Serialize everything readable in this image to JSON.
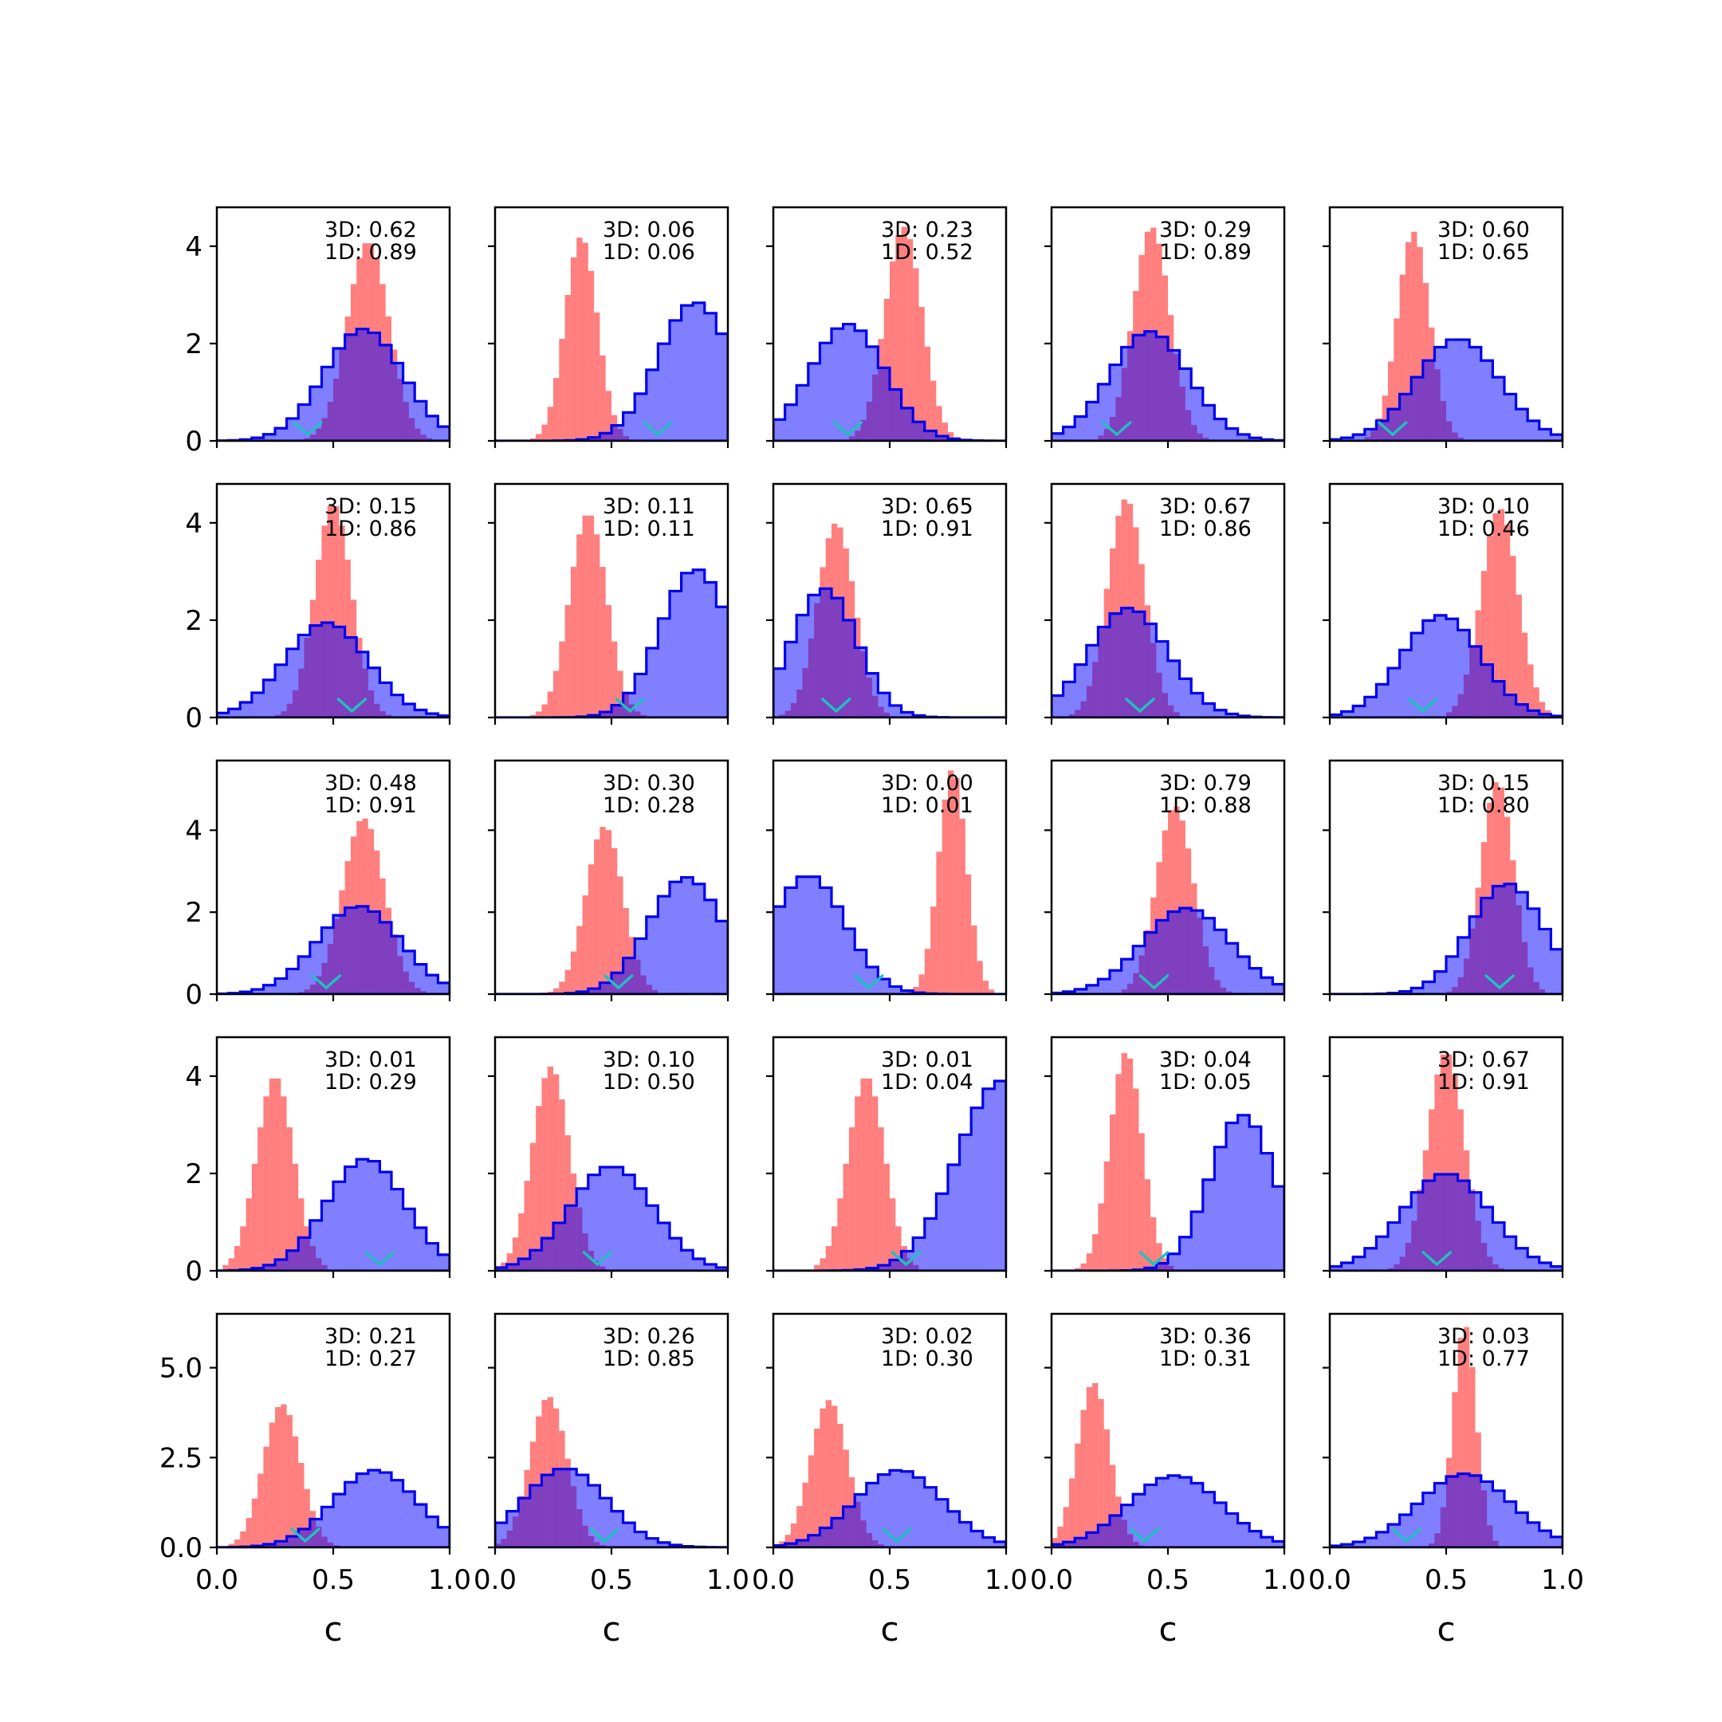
{
  "figure": {
    "layout": "5x5 grid of histograms",
    "background": "#ffffff"
  },
  "colors": {
    "histogram_1": "#ff0000",
    "histogram_2_fill": "#0000ff",
    "histogram_2_edge": "#0000ee",
    "marker": "#20c0c0",
    "frame": "#000000"
  },
  "chart_data": {
    "type": "histogram-grid",
    "rows": 5,
    "cols": 5,
    "sharex": true,
    "xlim": [
      0,
      1
    ],
    "xticks": [
      0.0,
      0.5,
      1.0
    ],
    "xtick_labels": [
      "0.0",
      "0.5",
      "1.0"
    ],
    "xlabel": "c",
    "row_axes": [
      {
        "ylim": [
          0,
          4.8
        ],
        "yticks": [
          0,
          2,
          4
        ],
        "ytick_labels": [
          "0",
          "2",
          "4"
        ]
      },
      {
        "ylim": [
          0,
          4.8
        ],
        "yticks": [
          0,
          2,
          4
        ],
        "ytick_labels": [
          "0",
          "2",
          "4"
        ]
      },
      {
        "ylim": [
          0,
          5.7
        ],
        "yticks": [
          0,
          2,
          4
        ],
        "ytick_labels": [
          "0",
          "2",
          "4"
        ]
      },
      {
        "ylim": [
          0,
          4.8
        ],
        "yticks": [
          0,
          2,
          4
        ],
        "ytick_labels": [
          "0",
          "2",
          "4"
        ]
      },
      {
        "ylim": [
          0,
          6.5
        ],
        "yticks": [
          0,
          2.5,
          5.0
        ],
        "ytick_labels": [
          "0.0",
          "2.5",
          "5.0"
        ]
      }
    ],
    "hist_1": {
      "style": "filled",
      "color": "#ff0000",
      "alpha": 0.5
    },
    "hist_2": {
      "style": "stepfilled",
      "color": "#0000ff",
      "alpha": 0.5,
      "edge": "#0000ee"
    },
    "panels": [
      {
        "label_3d": "3D: 0.62",
        "label_1d": "1D: 0.89",
        "red": {
          "mu": 0.65,
          "sd": 0.09,
          "peak": 4.1
        },
        "blue": {
          "mu": 0.63,
          "sd": 0.17,
          "peak": 2.3
        },
        "marker_x": 0.39
      },
      {
        "label_3d": "3D: 0.06",
        "label_1d": "1D: 0.06",
        "red": {
          "mu": 0.37,
          "sd": 0.07,
          "peak": 4.2
        },
        "blue": {
          "mu": 0.86,
          "sd": 0.16,
          "peak": 2.85
        },
        "marker_x": 0.7
      },
      {
        "label_3d": "3D: 0.23",
        "label_1d": "1D: 0.52",
        "red": {
          "mu": 0.56,
          "sd": 0.08,
          "peak": 4.4
        },
        "blue": {
          "mu": 0.32,
          "sd": 0.16,
          "peak": 2.4
        },
        "marker_x": 0.32
      },
      {
        "label_3d": "3D: 0.29",
        "label_1d": "1D: 0.89",
        "red": {
          "mu": 0.43,
          "sd": 0.08,
          "peak": 4.4
        },
        "blue": {
          "mu": 0.42,
          "sd": 0.17,
          "peak": 2.25
        },
        "marker_x": 0.28
      },
      {
        "label_3d": "3D: 0.60",
        "label_1d": "1D: 0.65",
        "red": {
          "mu": 0.36,
          "sd": 0.07,
          "peak": 4.3
        },
        "blue": {
          "mu": 0.55,
          "sd": 0.18,
          "peak": 2.1
        },
        "marker_x": 0.27
      },
      {
        "label_3d": "3D: 0.15",
        "label_1d": "1D: 0.86",
        "red": {
          "mu": 0.5,
          "sd": 0.08,
          "peak": 4.4
        },
        "blue": {
          "mu": 0.47,
          "sd": 0.18,
          "peak": 1.95
        },
        "marker_x": 0.58
      },
      {
        "label_3d": "3D: 0.11",
        "label_1d": "1D: 0.11",
        "red": {
          "mu": 0.4,
          "sd": 0.08,
          "peak": 4.2
        },
        "blue": {
          "mu": 0.86,
          "sd": 0.15,
          "peak": 3.05
        },
        "marker_x": 0.58
      },
      {
        "label_3d": "3D: 0.65",
        "label_1d": "1D: 0.91",
        "red": {
          "mu": 0.27,
          "sd": 0.08,
          "peak": 4.0
        },
        "blue": {
          "mu": 0.22,
          "sd": 0.14,
          "peak": 2.65
        },
        "marker_x": 0.27
      },
      {
        "label_3d": "3D: 0.67",
        "label_1d": "1D: 0.86",
        "red": {
          "mu": 0.32,
          "sd": 0.08,
          "peak": 4.5
        },
        "blue": {
          "mu": 0.33,
          "sd": 0.17,
          "peak": 2.25
        },
        "marker_x": 0.38
      },
      {
        "label_3d": "3D: 0.10",
        "label_1d": "1D: 0.46",
        "red": {
          "mu": 0.73,
          "sd": 0.08,
          "peak": 4.3
        },
        "blue": {
          "mu": 0.48,
          "sd": 0.17,
          "peak": 2.1
        },
        "marker_x": 0.4
      },
      {
        "label_3d": "3D: 0.48",
        "label_1d": "1D: 0.91",
        "red": {
          "mu": 0.63,
          "sd": 0.09,
          "peak": 4.3
        },
        "blue": {
          "mu": 0.61,
          "sd": 0.18,
          "peak": 2.15
        },
        "marker_x": 0.47
      },
      {
        "label_3d": "3D: 0.30",
        "label_1d": "1D: 0.28",
        "red": {
          "mu": 0.47,
          "sd": 0.08,
          "peak": 4.1
        },
        "blue": {
          "mu": 0.82,
          "sd": 0.16,
          "peak": 2.85
        },
        "marker_x": 0.53
      },
      {
        "label_3d": "3D: 0.00",
        "label_1d": "1D: 0.01",
        "red": {
          "mu": 0.77,
          "sd": 0.06,
          "peak": 5.5
        },
        "blue": {
          "mu": 0.15,
          "sd": 0.16,
          "peak": 2.9
        },
        "marker_x": 0.41
      },
      {
        "label_3d": "3D: 0.79",
        "label_1d": "1D: 0.88",
        "red": {
          "mu": 0.53,
          "sd": 0.08,
          "peak": 4.6
        },
        "blue": {
          "mu": 0.58,
          "sd": 0.19,
          "peak": 2.1
        },
        "marker_x": 0.44
      },
      {
        "label_3d": "3D: 0.15",
        "label_1d": "1D: 0.80",
        "red": {
          "mu": 0.72,
          "sd": 0.07,
          "peak": 5.2
        },
        "blue": {
          "mu": 0.76,
          "sd": 0.16,
          "peak": 2.7
        },
        "marker_x": 0.73
      },
      {
        "label_3d": "3D: 0.01",
        "label_1d": "1D: 0.29",
        "red": {
          "mu": 0.25,
          "sd": 0.08,
          "peak": 4.0
        },
        "blue": {
          "mu": 0.64,
          "sd": 0.17,
          "peak": 2.3
        },
        "marker_x": 0.7
      },
      {
        "label_3d": "3D: 0.10",
        "label_1d": "1D: 0.50",
        "red": {
          "mu": 0.24,
          "sd": 0.08,
          "peak": 4.2
        },
        "blue": {
          "mu": 0.5,
          "sd": 0.18,
          "peak": 2.15
        },
        "marker_x": 0.44
      },
      {
        "label_3d": "3D: 0.01",
        "label_1d": "1D: 0.04",
        "red": {
          "mu": 0.4,
          "sd": 0.08,
          "peak": 4.0
        },
        "blue": {
          "mu": 0.98,
          "sd": 0.19,
          "peak": 3.9
        },
        "marker_x": 0.57
      },
      {
        "label_3d": "3D: 0.04",
        "label_1d": "1D: 0.05",
        "red": {
          "mu": 0.32,
          "sd": 0.07,
          "peak": 4.5
        },
        "blue": {
          "mu": 0.82,
          "sd": 0.14,
          "peak": 3.2
        },
        "marker_x": 0.44
      },
      {
        "label_3d": "3D: 0.67",
        "label_1d": "1D: 0.91",
        "red": {
          "mu": 0.5,
          "sd": 0.08,
          "peak": 4.5
        },
        "blue": {
          "mu": 0.5,
          "sd": 0.19,
          "peak": 2.0
        },
        "marker_x": 0.46
      },
      {
        "label_3d": "3D: 0.21",
        "label_1d": "1D: 0.27",
        "red": {
          "mu": 0.28,
          "sd": 0.08,
          "peak": 4.0
        },
        "blue": {
          "mu": 0.68,
          "sd": 0.18,
          "peak": 2.15
        },
        "marker_x": 0.38
      },
      {
        "label_3d": "3D: 0.26",
        "label_1d": "1D: 0.85",
        "red": {
          "mu": 0.23,
          "sd": 0.08,
          "peak": 4.2
        },
        "blue": {
          "mu": 0.3,
          "sd": 0.18,
          "peak": 2.2
        },
        "marker_x": 0.47
      },
      {
        "label_3d": "3D: 0.02",
        "label_1d": "1D: 0.30",
        "red": {
          "mu": 0.24,
          "sd": 0.08,
          "peak": 4.1
        },
        "blue": {
          "mu": 0.54,
          "sd": 0.19,
          "peak": 2.15
        },
        "marker_x": 0.53
      },
      {
        "label_3d": "3D: 0.36",
        "label_1d": "1D: 0.31",
        "red": {
          "mu": 0.18,
          "sd": 0.07,
          "peak": 4.6
        },
        "blue": {
          "mu": 0.53,
          "sd": 0.2,
          "peak": 2.0
        },
        "marker_x": 0.4
      },
      {
        "label_3d": "3D: 0.03",
        "label_1d": "1D: 0.77",
        "red": {
          "mu": 0.58,
          "sd": 0.05,
          "peak": 6.2
        },
        "blue": {
          "mu": 0.58,
          "sd": 0.2,
          "peak": 2.05
        },
        "marker_x": 0.33
      }
    ]
  }
}
